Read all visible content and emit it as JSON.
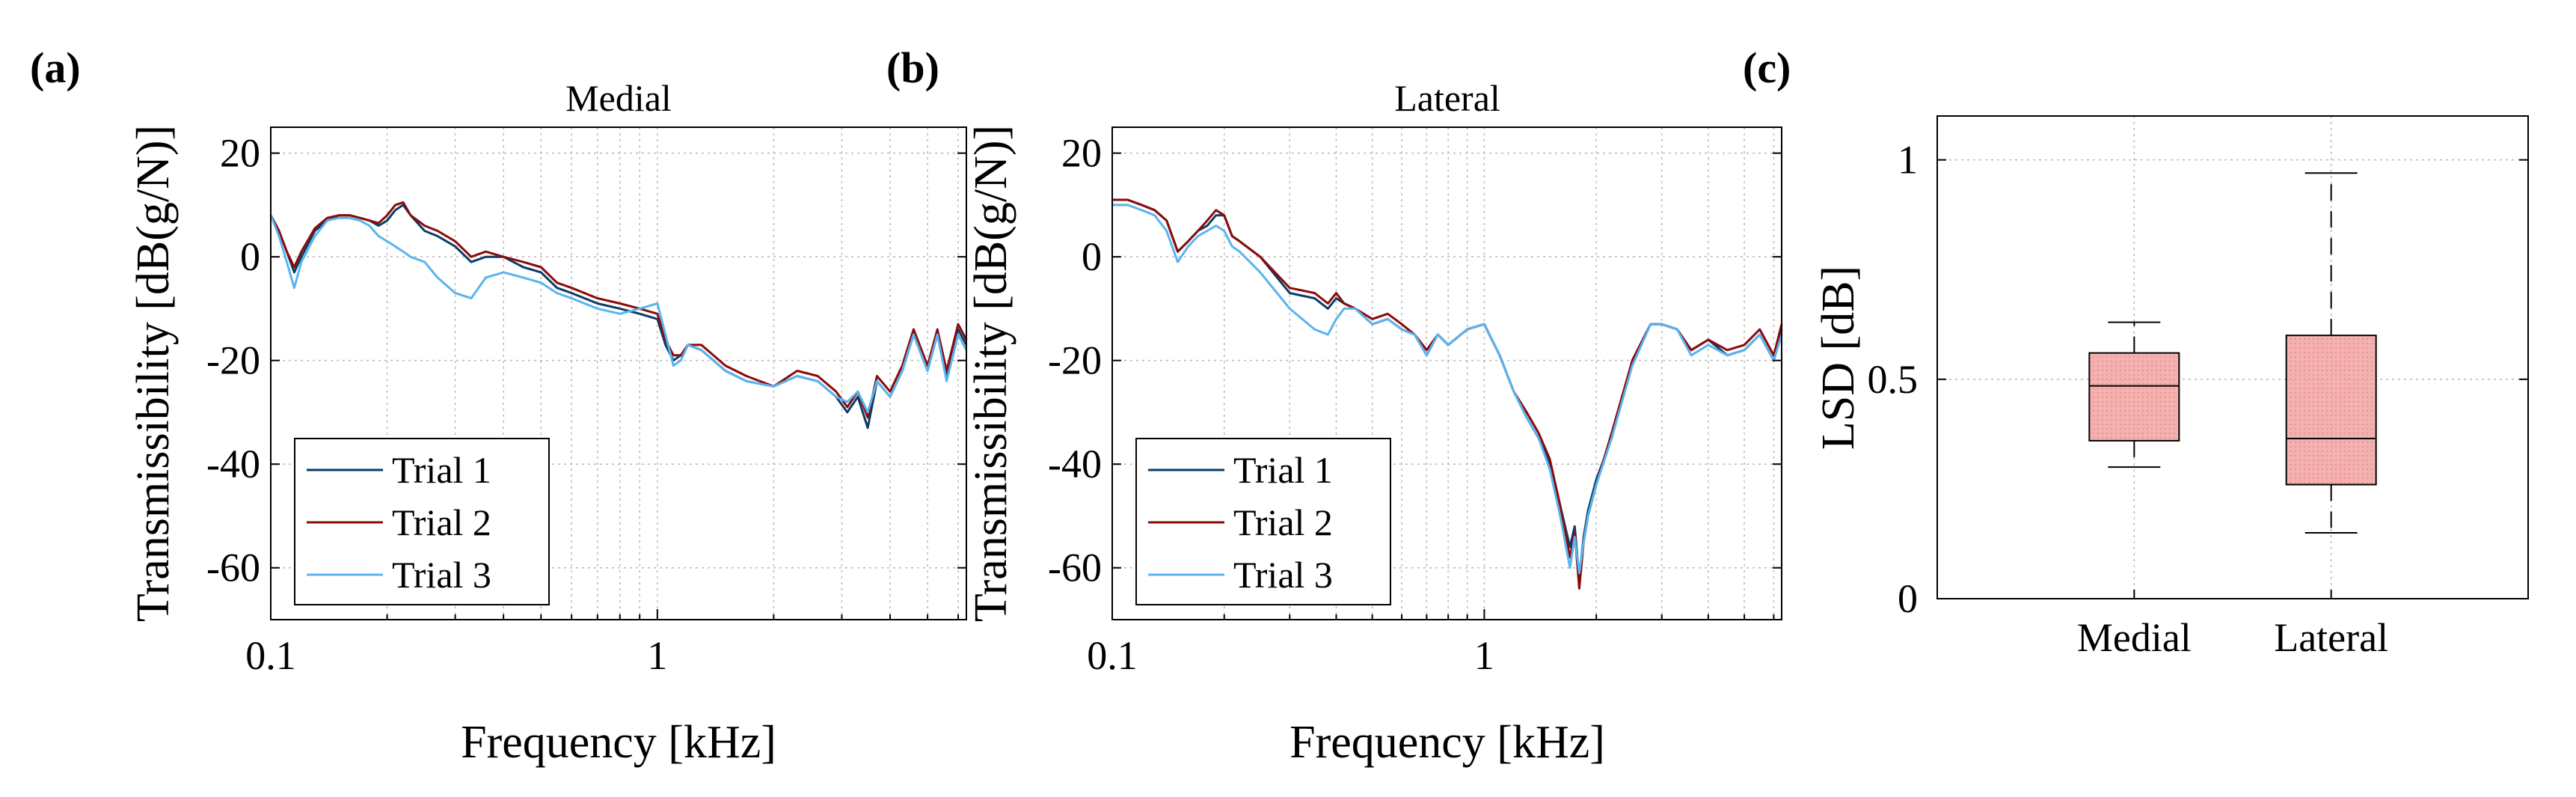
{
  "figure": {
    "panel_labels": [
      "(a)",
      "(b)",
      "(c)"
    ]
  },
  "chart_data": [
    {
      "type": "line",
      "panel": "(a)",
      "title": "Medial",
      "xlabel": "Frequency [kHz]",
      "ylabel": "Transmissibility [dB(g/N)]",
      "xscale": "log",
      "xlim": [
        0.1,
        6.3
      ],
      "ylim": [
        -70,
        25
      ],
      "xticks": [
        0.1,
        1
      ],
      "xtick_labels": [
        "0.1",
        "1"
      ],
      "yticks": [
        -60,
        -40,
        -20,
        0,
        20
      ],
      "ytick_labels": [
        "-60",
        "-40",
        "-20",
        "0",
        "20"
      ],
      "grid": true,
      "legend_position": "bottom-left",
      "series": [
        {
          "name": "Trial 1",
          "color": "#0b3d66",
          "x": [
            0.1,
            0.105,
            0.11,
            0.115,
            0.12,
            0.13,
            0.14,
            0.15,
            0.16,
            0.17,
            0.18,
            0.19,
            0.2,
            0.21,
            0.22,
            0.23,
            0.25,
            0.27,
            0.3,
            0.33,
            0.36,
            0.4,
            0.45,
            0.5,
            0.55,
            0.6,
            0.7,
            0.8,
            0.9,
            1.0,
            1.05,
            1.1,
            1.15,
            1.2,
            1.3,
            1.5,
            1.7,
            2.0,
            2.3,
            2.6,
            2.9,
            3.1,
            3.3,
            3.5,
            3.7,
            4.0,
            4.3,
            4.6,
            5.0,
            5.3,
            5.6,
            6.0,
            6.3
          ],
          "y": [
            8,
            5,
            1,
            -3,
            0,
            5,
            7,
            8,
            8,
            7.5,
            7,
            6,
            7,
            9,
            10,
            8,
            5,
            4,
            2,
            -1,
            0,
            0,
            -2,
            -3,
            -6,
            -7,
            -9,
            -10,
            -11,
            -12,
            -17,
            -20,
            -19,
            -17,
            -18,
            -22,
            -24,
            -25,
            -23,
            -24,
            -27,
            -30,
            -27,
            -33,
            -24,
            -27,
            -22,
            -15,
            -22,
            -15,
            -23,
            -14,
            -17
          ]
        },
        {
          "name": "Trial 2",
          "color": "#8b0a0a",
          "x": [
            0.1,
            0.105,
            0.11,
            0.115,
            0.12,
            0.13,
            0.14,
            0.15,
            0.16,
            0.17,
            0.18,
            0.19,
            0.2,
            0.21,
            0.22,
            0.23,
            0.25,
            0.27,
            0.3,
            0.33,
            0.36,
            0.4,
            0.45,
            0.5,
            0.55,
            0.6,
            0.7,
            0.8,
            0.9,
            1.0,
            1.05,
            1.1,
            1.15,
            1.2,
            1.3,
            1.5,
            1.7,
            2.0,
            2.3,
            2.6,
            2.9,
            3.1,
            3.3,
            3.5,
            3.7,
            4.0,
            4.3,
            4.6,
            5.0,
            5.3,
            5.6,
            6.0,
            6.3
          ],
          "y": [
            8,
            5,
            1,
            -2,
            1,
            5.5,
            7.5,
            8,
            8,
            7.5,
            7,
            6.5,
            8,
            10,
            10.5,
            8,
            6,
            5,
            3,
            0,
            1,
            0,
            -1,
            -2,
            -5,
            -6,
            -8,
            -9,
            -10,
            -11,
            -16,
            -19,
            -19,
            -17,
            -17,
            -21,
            -23,
            -25,
            -22,
            -23,
            -26,
            -29,
            -26,
            -31,
            -23,
            -26,
            -21,
            -14,
            -21,
            -14,
            -22,
            -13,
            -16
          ]
        },
        {
          "name": "Trial 3",
          "color": "#5ab4f0",
          "x": [
            0.1,
            0.105,
            0.11,
            0.115,
            0.12,
            0.13,
            0.14,
            0.15,
            0.16,
            0.17,
            0.18,
            0.19,
            0.2,
            0.21,
            0.22,
            0.23,
            0.25,
            0.27,
            0.3,
            0.33,
            0.36,
            0.4,
            0.45,
            0.5,
            0.55,
            0.6,
            0.7,
            0.8,
            0.9,
            1.0,
            1.05,
            1.1,
            1.15,
            1.2,
            1.3,
            1.5,
            1.7,
            2.0,
            2.3,
            2.6,
            2.9,
            3.1,
            3.3,
            3.5,
            3.7,
            4.0,
            4.3,
            4.6,
            5.0,
            5.3,
            5.6,
            6.0,
            6.3
          ],
          "y": [
            8,
            4,
            -1,
            -6,
            -1,
            4,
            7,
            7.5,
            7.5,
            7,
            6,
            4,
            3,
            2,
            1,
            0,
            -1,
            -4,
            -7,
            -8,
            -4,
            -3,
            -4,
            -5,
            -7,
            -8,
            -10,
            -11,
            -10,
            -9,
            -15,
            -21,
            -20,
            -17,
            -18,
            -22,
            -24,
            -25,
            -23,
            -24,
            -27,
            -28,
            -26,
            -30,
            -24,
            -27,
            -22,
            -15,
            -22,
            -15,
            -24,
            -15,
            -18
          ]
        }
      ]
    },
    {
      "type": "line",
      "panel": "(b)",
      "title": "Lateral",
      "xlabel": "Frequency [kHz]",
      "ylabel": "Transmissibility [dB(g/N)]",
      "xscale": "log",
      "xlim": [
        0.1,
        6.3
      ],
      "ylim": [
        -70,
        25
      ],
      "xticks": [
        0.1,
        1
      ],
      "xtick_labels": [
        "0.1",
        "1"
      ],
      "yticks": [
        -60,
        -40,
        -20,
        0,
        20
      ],
      "ytick_labels": [
        "-60",
        "-40",
        "-20",
        "0",
        "20"
      ],
      "grid": true,
      "legend_position": "bottom-left",
      "series": [
        {
          "name": "Trial 1",
          "color": "#0b3d66",
          "x": [
            0.1,
            0.11,
            0.12,
            0.13,
            0.14,
            0.15,
            0.16,
            0.17,
            0.18,
            0.19,
            0.2,
            0.21,
            0.22,
            0.25,
            0.3,
            0.35,
            0.38,
            0.4,
            0.42,
            0.45,
            0.5,
            0.55,
            0.6,
            0.65,
            0.7,
            0.75,
            0.8,
            0.9,
            1.0,
            1.1,
            1.2,
            1.3,
            1.4,
            1.5,
            1.6,
            1.7,
            1.75,
            1.8,
            1.85,
            1.9,
            2.0,
            2.2,
            2.5,
            2.8,
            3.0,
            3.3,
            3.6,
            4.0,
            4.5,
            5.0,
            5.5,
            6.0,
            6.3
          ],
          "y": [
            11,
            11,
            10,
            9,
            7,
            1,
            3,
            5,
            6,
            8,
            8,
            4,
            3,
            0,
            -7,
            -8,
            -10,
            -8,
            -9,
            -10,
            -13,
            -12,
            -14,
            -15,
            -19,
            -15,
            -17,
            -14,
            -13,
            -19,
            -26,
            -31,
            -35,
            -40,
            -48,
            -56,
            -52,
            -62,
            -54,
            -49,
            -43,
            -35,
            -20,
            -13,
            -13,
            -14,
            -18,
            -16,
            -19,
            -18,
            -15,
            -20,
            -14
          ]
        },
        {
          "name": "Trial 2",
          "color": "#8b0a0a",
          "x": [
            0.1,
            0.11,
            0.12,
            0.13,
            0.14,
            0.15,
            0.16,
            0.17,
            0.18,
            0.19,
            0.2,
            0.21,
            0.22,
            0.25,
            0.3,
            0.35,
            0.38,
            0.4,
            0.42,
            0.45,
            0.5,
            0.55,
            0.6,
            0.65,
            0.7,
            0.75,
            0.8,
            0.9,
            1.0,
            1.1,
            1.2,
            1.3,
            1.4,
            1.5,
            1.6,
            1.7,
            1.75,
            1.8,
            1.85,
            1.9,
            2.0,
            2.2,
            2.5,
            2.8,
            3.0,
            3.3,
            3.6,
            4.0,
            4.5,
            5.0,
            5.5,
            6.0,
            6.3
          ],
          "y": [
            11,
            11,
            10,
            9,
            7,
            1,
            3,
            5,
            7,
            9,
            8,
            4,
            3,
            0,
            -6,
            -7,
            -9,
            -7,
            -9,
            -10,
            -12,
            -11,
            -13,
            -15,
            -18,
            -15,
            -17,
            -14,
            -13,
            -19,
            -26,
            -30,
            -34,
            -39,
            -48,
            -58,
            -53,
            -64,
            -55,
            -50,
            -44,
            -34,
            -20,
            -13,
            -13,
            -14,
            -18,
            -16,
            -18,
            -17,
            -14,
            -19,
            -13
          ]
        },
        {
          "name": "Trial 3",
          "color": "#5ab4f0",
          "x": [
            0.1,
            0.11,
            0.12,
            0.13,
            0.14,
            0.15,
            0.16,
            0.17,
            0.18,
            0.19,
            0.2,
            0.21,
            0.22,
            0.25,
            0.3,
            0.35,
            0.38,
            0.4,
            0.42,
            0.45,
            0.5,
            0.55,
            0.6,
            0.65,
            0.7,
            0.75,
            0.8,
            0.9,
            1.0,
            1.1,
            1.2,
            1.3,
            1.4,
            1.5,
            1.6,
            1.7,
            1.75,
            1.8,
            1.85,
            1.9,
            2.0,
            2.2,
            2.5,
            2.8,
            3.0,
            3.3,
            3.6,
            4.0,
            4.5,
            5.0,
            5.5,
            6.0,
            6.3
          ],
          "y": [
            10,
            10,
            9,
            8,
            5,
            -1,
            2,
            4,
            5,
            6,
            5,
            2,
            1,
            -3,
            -10,
            -14,
            -15,
            -12,
            -10,
            -10,
            -13,
            -12,
            -14,
            -15,
            -19,
            -15,
            -17,
            -14,
            -13,
            -19,
            -26,
            -31,
            -35,
            -41,
            -50,
            -60,
            -54,
            -61,
            -55,
            -50,
            -44,
            -35,
            -21,
            -13,
            -13,
            -14,
            -19,
            -17,
            -19,
            -18,
            -15,
            -20,
            -15
          ]
        }
      ]
    },
    {
      "type": "box",
      "panel": "(c)",
      "title": "",
      "xlabel": "",
      "ylabel": "LSD [dB]",
      "categories": [
        "Medial",
        "Lateral"
      ],
      "ylim": [
        0,
        1.1
      ],
      "yticks": [
        0,
        0.5,
        1
      ],
      "ytick_labels": [
        "0",
        "0.5",
        "1"
      ],
      "grid": true,
      "box_color": "#f5b0b0",
      "box_edge_color": "#000000",
      "boxes": [
        {
          "name": "Medial",
          "whisker_low": 0.3,
          "q1": 0.36,
          "median": 0.485,
          "q3": 0.56,
          "whisker_high": 0.63
        },
        {
          "name": "Lateral",
          "whisker_low": 0.15,
          "q1": 0.26,
          "median": 0.365,
          "q3": 0.6,
          "whisker_high": 0.97
        }
      ]
    }
  ]
}
